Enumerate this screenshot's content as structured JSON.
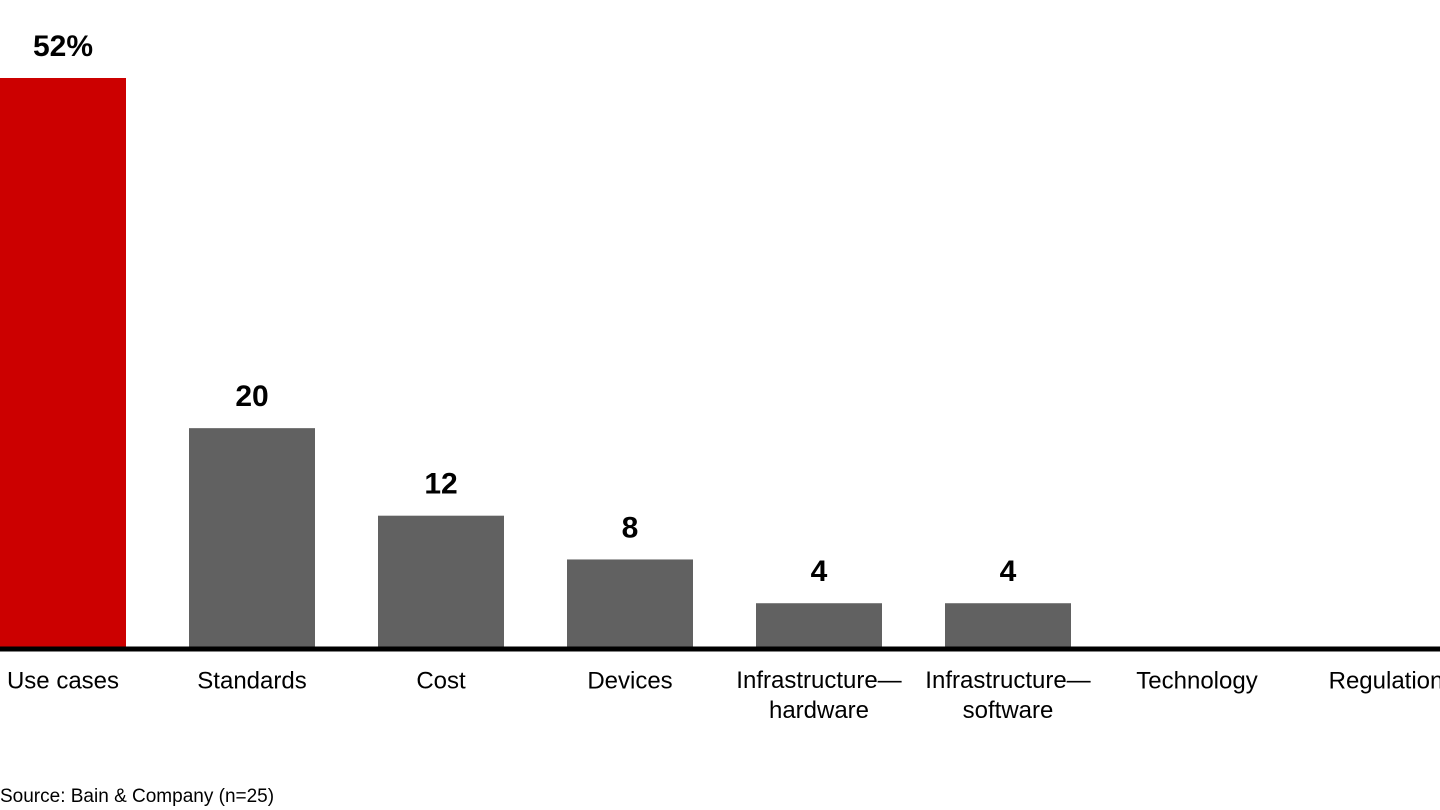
{
  "chart_data": {
    "type": "bar",
    "categories": [
      "Use cases",
      "Standards",
      "Cost",
      "Devices",
      "Infrastructure—hardware",
      "Infrastructure—software",
      "Technology",
      "Regulation"
    ],
    "values": [
      52,
      20,
      12,
      8,
      4,
      4,
      0,
      0
    ],
    "value_labels": [
      "52%",
      "20",
      "12",
      "8",
      "4",
      "4",
      null,
      null
    ],
    "colors": [
      "#cc0000",
      "#616161",
      "#616161",
      "#616161",
      "#616161",
      "#616161",
      "#616161",
      "#616161"
    ],
    "ylim": [
      0,
      52
    ],
    "source": "Source: Bain & Company (n=25)"
  }
}
